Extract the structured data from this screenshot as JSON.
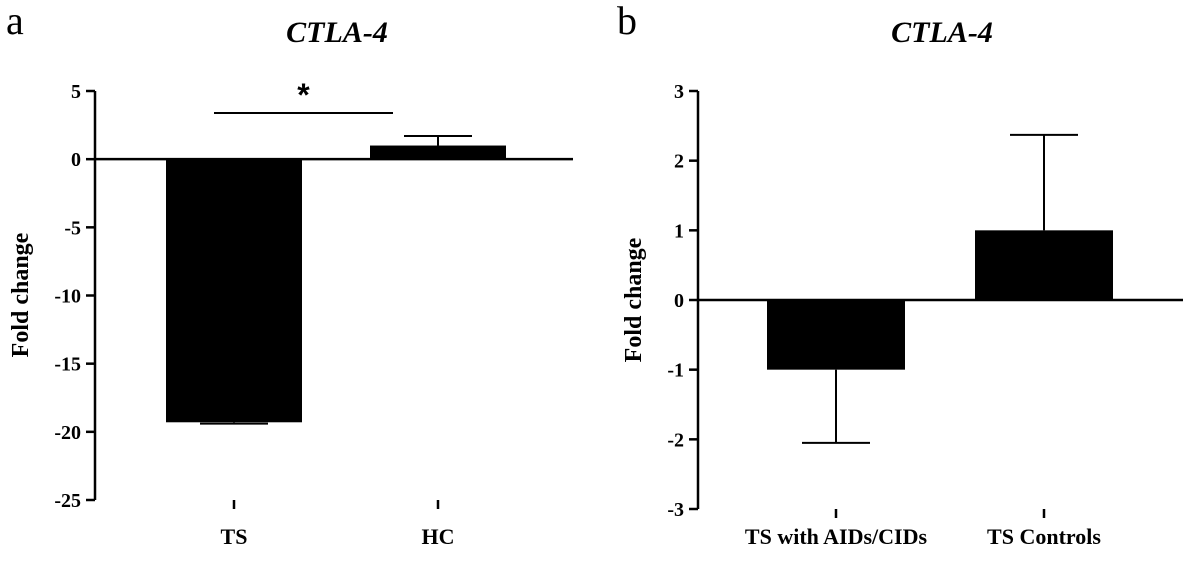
{
  "chart_data": [
    {
      "type": "bar",
      "panel_letter": "a",
      "title": "CTLA-4",
      "ylabel": "Fold change",
      "xlabel": "",
      "categories": [
        "TS",
        "HC"
      ],
      "values": [
        -19.3,
        1.0
      ],
      "error_bars": [
        {
          "category": "TS",
          "direction": "down",
          "value": 0.1
        },
        {
          "category": "HC",
          "direction": "up",
          "value": 0.7
        }
      ],
      "ylim": [
        -25,
        5
      ],
      "yticks": [
        5,
        0,
        -5,
        -10,
        -15,
        -20,
        -25
      ],
      "yticklabels": [
        "5",
        "0",
        "-5",
        "-10",
        "-15",
        "-20",
        "-25"
      ],
      "significance": {
        "label": "*",
        "between": [
          "TS",
          "HC"
        ]
      },
      "grid": false,
      "bar_color": "#000000"
    },
    {
      "type": "bar",
      "panel_letter": "b",
      "title": "CTLA-4",
      "ylabel": "Fold change",
      "xlabel": "",
      "categories": [
        "TS with AIDs/CIDs",
        "TS Controls"
      ],
      "values": [
        -1.0,
        1.0
      ],
      "error_bars": [
        {
          "category": "TS with AIDs/CIDs",
          "direction": "down",
          "value": 1.05
        },
        {
          "category": "TS Controls",
          "direction": "up",
          "value": 1.37
        }
      ],
      "ylim": [
        -3,
        3
      ],
      "yticks": [
        3,
        2,
        1,
        0,
        -1,
        -2,
        -3
      ],
      "yticklabels": [
        "3",
        "2",
        "1",
        "0",
        "-1",
        "-2",
        "-3"
      ],
      "grid": false,
      "bar_color": "#000000"
    }
  ]
}
